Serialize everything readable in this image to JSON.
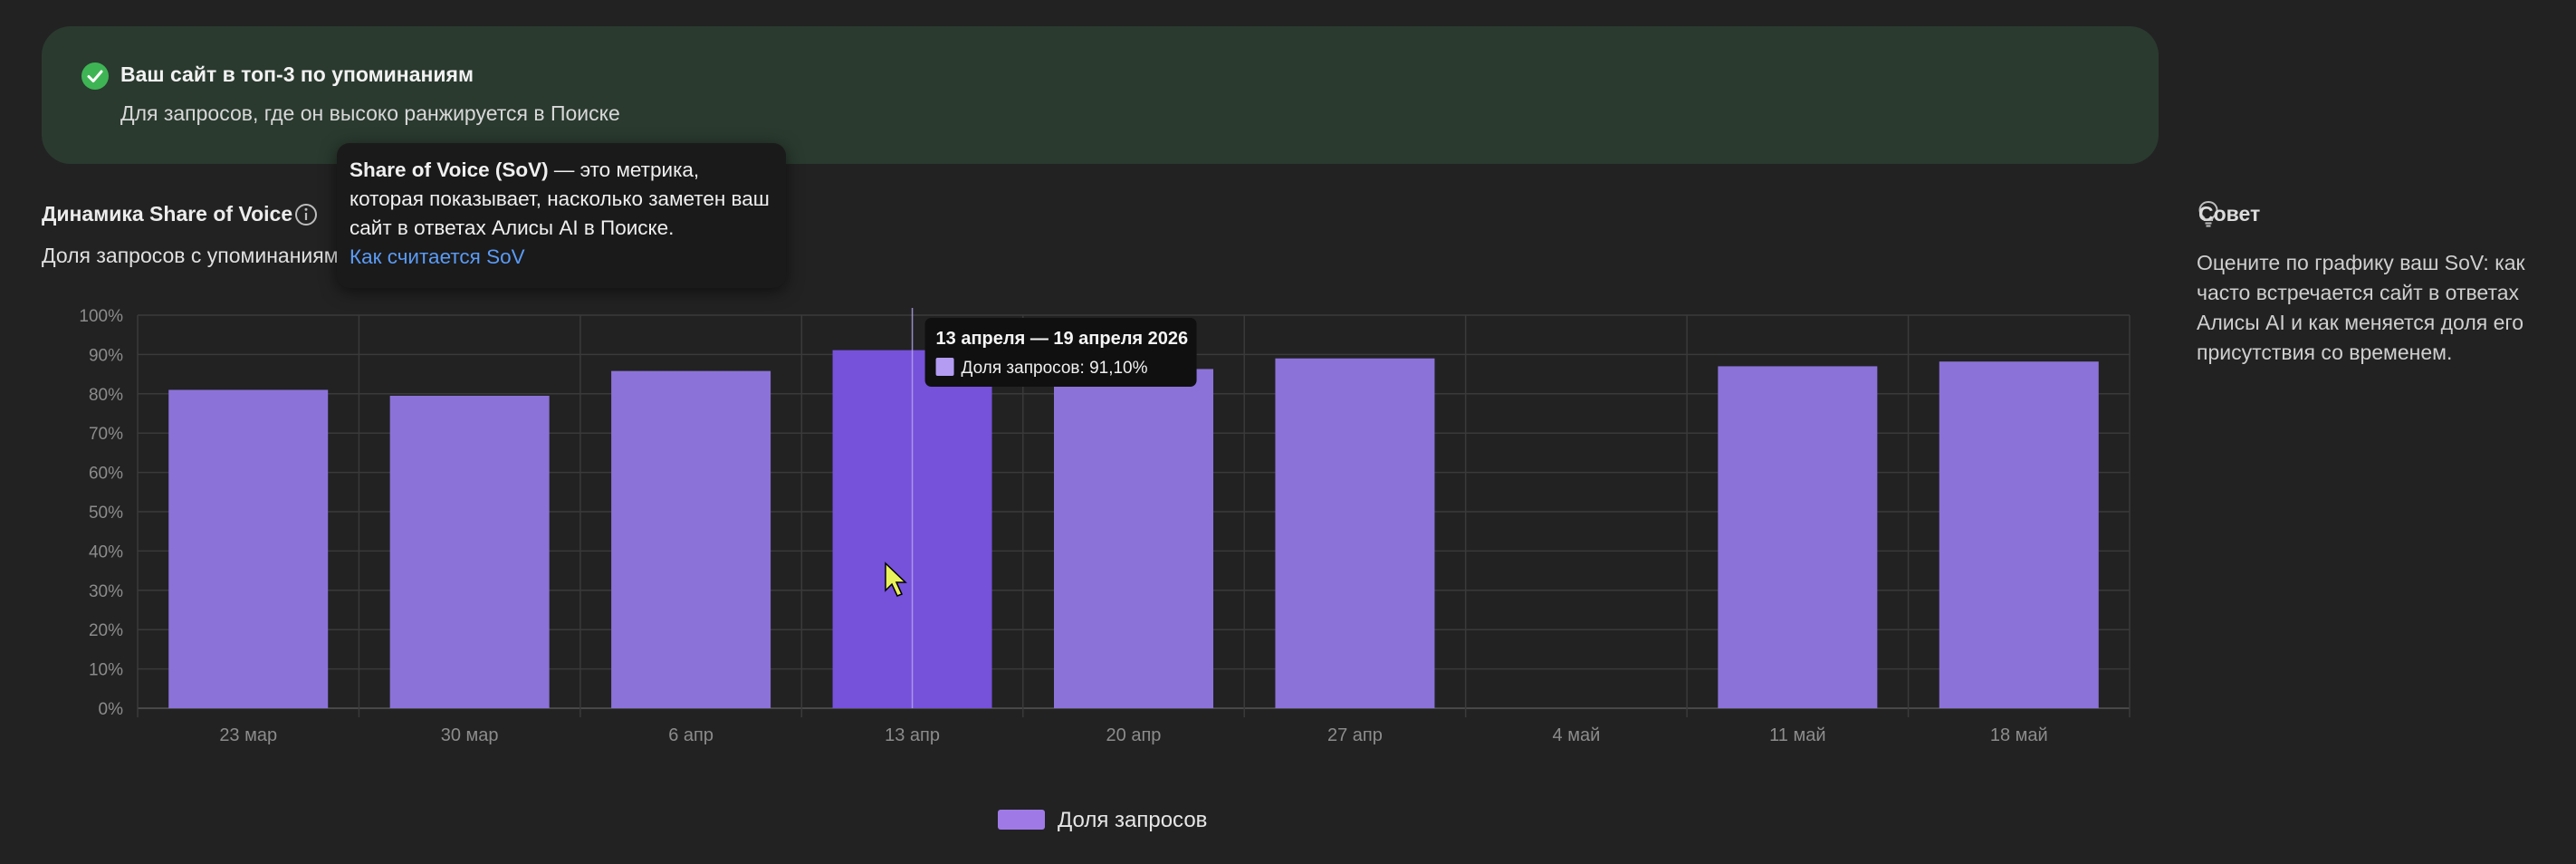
{
  "banner": {
    "title": "Ваш сайт в топ-3 по упоминаниям",
    "subtitle": "Для запросов, где он высоко ранжируется в Поиске"
  },
  "section": {
    "title": "Динамика Share of Voice",
    "subtitle": "Доля запросов с упоминаниям"
  },
  "popover": {
    "bold": "Share of Voice (SoV)",
    "text": " — это метрика, которая показывает, насколько заметен ваш сайт в ответах Алисы AI в Поиске.",
    "link": "Как считается SoV"
  },
  "tip": {
    "title": "Совет",
    "text": "Оцените по графику ваш SoV: как часто встречается сайт в ответах Алисы AI и как меняется доля его присутствия со временем."
  },
  "chart_data": {
    "type": "bar",
    "categories": [
      "23 мар",
      "30 мар",
      "6 апр",
      "13 апр",
      "20 апр",
      "27 апр",
      "4 май",
      "11 май",
      "18 май"
    ],
    "series": [
      {
        "name": "Доля запросов",
        "values": [
          81,
          79.5,
          85.8,
          91.1,
          86.3,
          89,
          null,
          87,
          88.2
        ]
      }
    ],
    "y_ticks": [
      "0%",
      "10%",
      "20%",
      "30%",
      "40%",
      "50%",
      "60%",
      "70%",
      "80%",
      "90%",
      "100%"
    ],
    "ylim": [
      0,
      100
    ],
    "grid": true,
    "legend": "bottom-center",
    "highlighted_index": 3,
    "bar_color": "#8b72d8",
    "highlight_color": "#7651da",
    "tooltip": {
      "title": "13 апреля — 19 апреля 2026",
      "line": "Доля запросов: 91,10%"
    }
  },
  "legend": {
    "label": "Доля запросов"
  },
  "colors": {
    "accent_green": "#3fb455",
    "link": "#5b9bf5"
  }
}
